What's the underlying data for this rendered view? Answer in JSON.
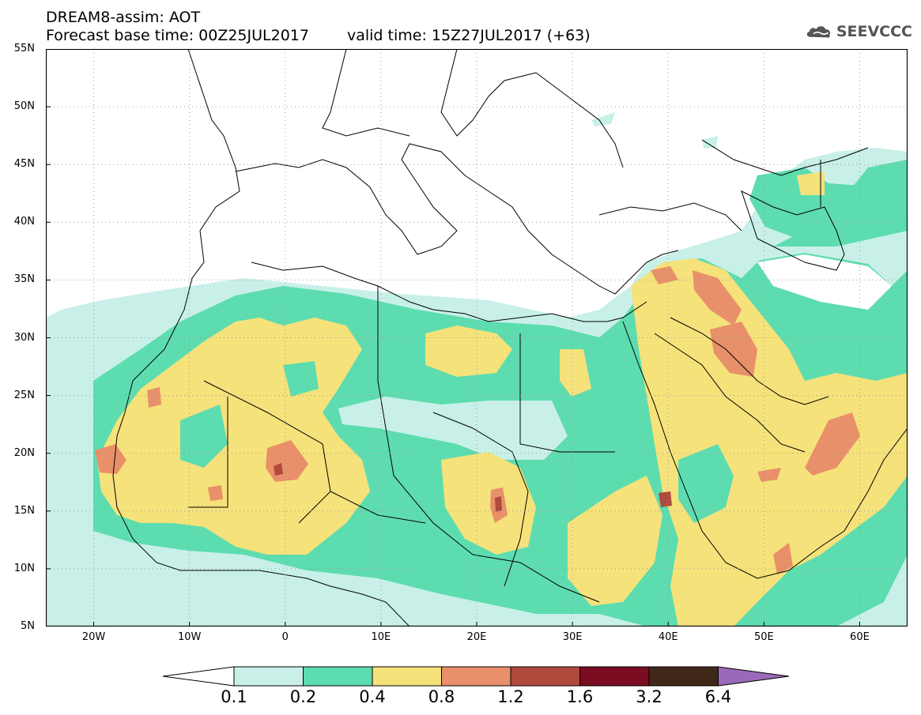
{
  "title": {
    "model_line": "DREAM8-assim: AOT",
    "base_time": "Forecast base time: 00Z25JUL2017",
    "valid_time": "valid time: 15Z27JUL2017 (+63)"
  },
  "logo": {
    "text": "SEEVCCC",
    "icon": "cloud-icon"
  },
  "map": {
    "lon_range": [
      -25,
      65
    ],
    "lat_range": [
      5,
      55
    ],
    "lat_labels": [
      "55N",
      "50N",
      "45N",
      "40N",
      "35N",
      "30N",
      "25N",
      "20N",
      "15N",
      "10N",
      "5N"
    ],
    "lon_labels": [
      "20W",
      "10W",
      "0",
      "10E",
      "20E",
      "30E",
      "40E",
      "50E",
      "60E"
    ]
  },
  "colorbar": {
    "labels": [
      "0.1",
      "0.2",
      "0.4",
      "0.8",
      "1.2",
      "1.6",
      "3.2",
      "6.4"
    ],
    "colors": [
      "#c8f0e8",
      "#5ddcb0",
      "#f5e27a",
      "#e8906a",
      "#b04a3c",
      "#7a0d22",
      "#402818",
      "#9a6ab8"
    ]
  }
}
